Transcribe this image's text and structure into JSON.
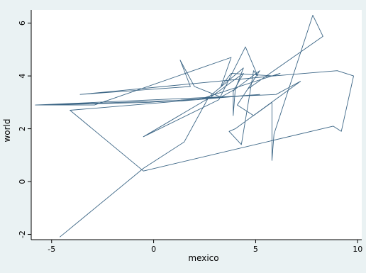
{
  "chart_data": {
    "type": "line",
    "title": "",
    "xlabel": "mexico",
    "ylabel": "world",
    "xlim": [
      -6,
      10.2
    ],
    "ylim": [
      -2.2,
      6.5
    ],
    "xticks": [
      -5,
      0,
      5,
      10
    ],
    "xtick_labels": [
      "-5",
      "0",
      "5",
      "10"
    ],
    "yticks": [
      -2,
      0,
      2,
      4,
      6
    ],
    "ytick_labels": [
      "-2",
      "0",
      "2",
      "4",
      "6"
    ],
    "grid": false,
    "legend": "none",
    "colors": {
      "plot_bg": "#ffffff",
      "page_bg": "#eaf2f3",
      "line": "#3b6585",
      "axis": "#000000"
    },
    "series": [
      {
        "values": [
          [
            -4.6,
            -2.1
          ],
          [
            -0.5,
            0.5
          ],
          [
            1.5,
            1.5
          ],
          [
            2.7,
            3.2
          ],
          [
            4.4,
            4.3
          ],
          [
            4.0,
            3.5
          ],
          [
            3.3,
            3.2
          ],
          [
            2.0,
            3.6
          ],
          [
            1.3,
            4.6
          ],
          [
            1.8,
            3.6
          ],
          [
            -3.6,
            3.3
          ],
          [
            5.9,
            4.0
          ],
          [
            6.2,
            4.1
          ],
          [
            2.2,
            3.1
          ],
          [
            -5.5,
            2.9
          ],
          [
            -0.2,
            3.0
          ],
          [
            5.2,
            3.3
          ],
          [
            -4.1,
            2.7
          ],
          [
            -0.5,
            0.4
          ],
          [
            8.8,
            2.1
          ],
          [
            9.2,
            1.9
          ],
          [
            9.8,
            4.0
          ],
          [
            9.0,
            4.2
          ],
          [
            5.9,
            4.0
          ],
          [
            3.8,
            4.1
          ],
          [
            3.3,
            3.6
          ],
          [
            3.8,
            4.7
          ],
          [
            -2.9,
            2.9
          ],
          [
            -5.8,
            2.9
          ],
          [
            6.0,
            3.3
          ],
          [
            7.2,
            3.8
          ],
          [
            4.0,
            2.0
          ],
          [
            3.7,
            1.9
          ],
          [
            4.3,
            1.4
          ],
          [
            4.9,
            4.2
          ],
          [
            5.1,
            4.0
          ],
          [
            4.5,
            5.1
          ],
          [
            3.2,
            3.1
          ],
          [
            -0.5,
            1.7
          ],
          [
            2.8,
            3.2
          ],
          [
            4.4,
            4.1
          ],
          [
            3.9,
            3.4
          ],
          [
            3.9,
            2.5
          ],
          [
            4.0,
            3.5
          ],
          [
            5.2,
            4.2
          ],
          [
            4.1,
            2.9
          ],
          [
            4.9,
            2.5
          ],
          [
            5.8,
            3.0
          ],
          [
            5.8,
            0.8
          ],
          [
            5.9,
            1.8
          ],
          [
            7.8,
            6.3
          ],
          [
            8.3,
            5.5
          ],
          [
            4.6,
            3.5
          ]
        ]
      }
    ]
  }
}
